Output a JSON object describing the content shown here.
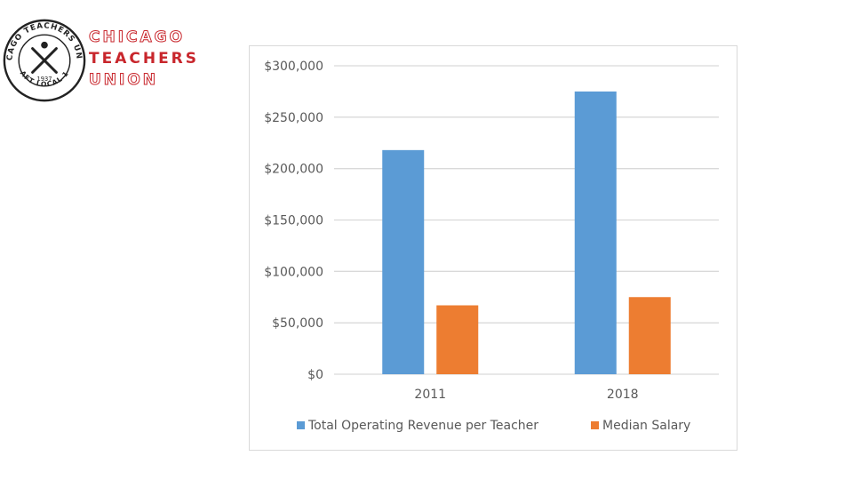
{
  "logo": {
    "line1": "CHICAGO",
    "line2": "TEACHERS",
    "line3": "UNION",
    "seal_top": "CHICAGO TEACHERS UNION",
    "seal_bottom": "AFT LOCAL 1",
    "seal_year": "1937",
    "color": "#c8262c"
  },
  "chart_data": {
    "type": "bar",
    "categories": [
      "2011",
      "2018"
    ],
    "series": [
      {
        "name": "Total Operating Revenue per Teacher",
        "values": [
          218000,
          275000
        ],
        "color": "#5b9bd5"
      },
      {
        "name": "Median Salary",
        "values": [
          67000,
          75000
        ],
        "color": "#ed7d31"
      }
    ],
    "ylim": [
      0,
      300000
    ],
    "yticks": [
      0,
      50000,
      100000,
      150000,
      200000,
      250000,
      300000
    ],
    "ytick_labels": [
      "$0",
      "$50,000",
      "$100,000",
      "$150,000",
      "$200,000",
      "$250,000",
      "$300,000"
    ],
    "grid": true,
    "legend_position": "bottom",
    "title": "",
    "xlabel": "",
    "ylabel": ""
  }
}
